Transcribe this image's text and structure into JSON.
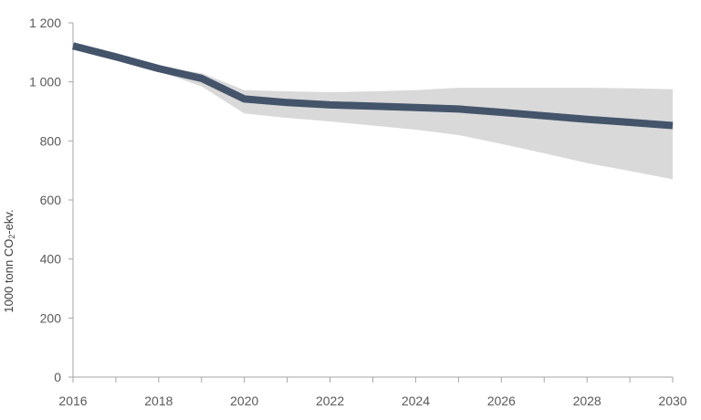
{
  "chart_data": {
    "type": "line",
    "title": "",
    "xlabel": "",
    "ylabel": {
      "prefix": "1000 tonn CO",
      "subscript": "2",
      "suffix": "-ekv."
    },
    "xlim": [
      2016,
      2030
    ],
    "ylim": [
      0,
      1200
    ],
    "x_ticks": [
      2016,
      2018,
      2020,
      2022,
      2024,
      2026,
      2028,
      2030
    ],
    "x_tick_labels": [
      "2016",
      "2018",
      "2020",
      "2022",
      "2024",
      "2026",
      "2028",
      "2030"
    ],
    "y_ticks": [
      0,
      200,
      400,
      600,
      800,
      1000,
      1200
    ],
    "y_tick_labels": [
      "0",
      "200",
      "400",
      "600",
      "800",
      "1 000",
      "1 200"
    ],
    "grid": false,
    "legend": "none",
    "series": [
      {
        "x": [
          2016,
          2017,
          2018,
          2019,
          2020,
          2021,
          2022,
          2023,
          2024,
          2025,
          2026,
          2027,
          2028,
          2029,
          2030
        ],
        "values": [
          1122,
          1085,
          1045,
          1012,
          942,
          930,
          922,
          918,
          913,
          908,
          897,
          885,
          873,
          863,
          852
        ],
        "color": "#44546a"
      }
    ],
    "band": {
      "x": [
        2016,
        2017,
        2018,
        2019,
        2020,
        2021,
        2022,
        2023,
        2024,
        2025,
        2026,
        2027,
        2028,
        2029,
        2030
      ],
      "upper": [
        1125,
        1088,
        1050,
        1030,
        972,
        968,
        965,
        968,
        972,
        980,
        980,
        980,
        980,
        978,
        975
      ],
      "lower": [
        1118,
        1080,
        1035,
        985,
        893,
        878,
        866,
        852,
        838,
        820,
        790,
        758,
        725,
        698,
        670
      ],
      "color": "#d9d9d9"
    }
  }
}
